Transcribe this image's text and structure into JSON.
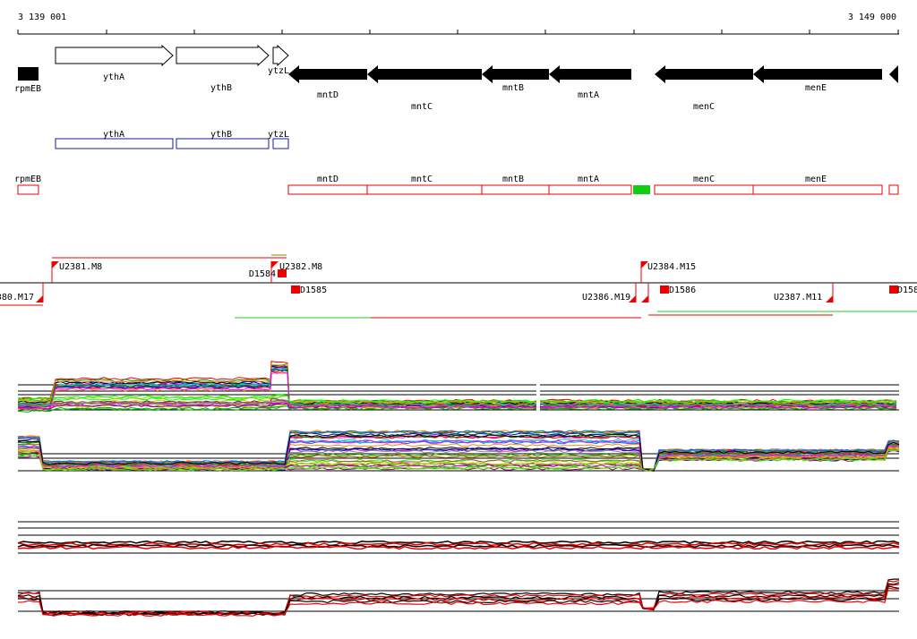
{
  "ruler": {
    "start": "3 139 001",
    "end": "3 149 000"
  },
  "gene_track": [
    "rpmEB",
    "ythA",
    "ythB",
    "ytzL",
    "mntD",
    "mntC",
    "mntB",
    "mntA",
    "menC",
    "menE"
  ],
  "track2": [
    "ythA",
    "ythB",
    "ytzL"
  ],
  "track3": [
    "rpmEB",
    "mntD",
    "mntC",
    "mntB",
    "mntA",
    "menC",
    "menE"
  ],
  "regulatory": [
    "U2381.M8",
    "D1584",
    "U2382.M8",
    "U2384.M15",
    "380.M17",
    "D1585",
    "U2386.M19",
    "D1586",
    "U2387.M11",
    "D158"
  ]
}
